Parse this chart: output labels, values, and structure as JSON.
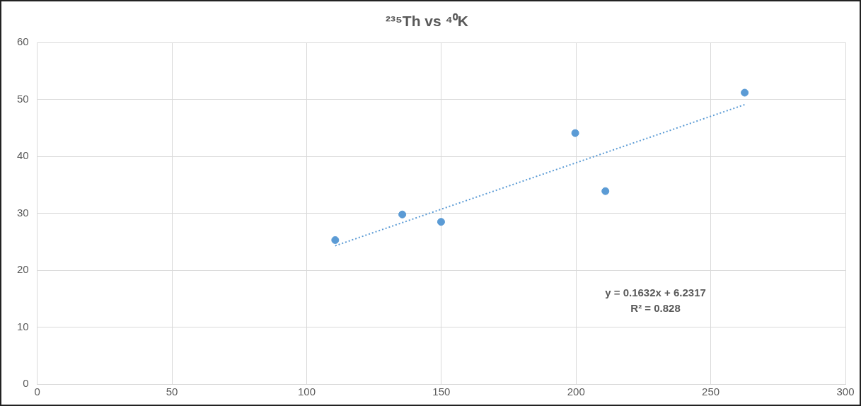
{
  "chart_data": {
    "type": "scatter",
    "title": "²³⁵Th vs ⁴⁰K",
    "series": [
      {
        "color": "#5b9bd5",
        "marker": "circle",
        "x": [
          110.6,
          135.5,
          149.9,
          199.7,
          210.9,
          262.6
        ],
        "values": [
          25.3,
          29.8,
          28.5,
          44.1,
          33.9,
          51.2
        ]
      },
      {
        "type": "line",
        "color": "#5b9bd5",
        "marker": "none",
        "line_style": "dotted",
        "x": [
          110.6,
          262.6
        ],
        "values": [
          24.3,
          49.1
        ]
      }
    ],
    "annotations": [
      "y = 0.1632x + 6.2317",
      "R² = 0.828"
    ],
    "xlim": [
      0,
      300
    ],
    "xticks": [
      0,
      50,
      100,
      150,
      200,
      250,
      300
    ],
    "ylim": [
      0,
      60
    ],
    "yticks": [
      0,
      10,
      20,
      30,
      40,
      50,
      60
    ],
    "grid": true,
    "legend": false
  }
}
